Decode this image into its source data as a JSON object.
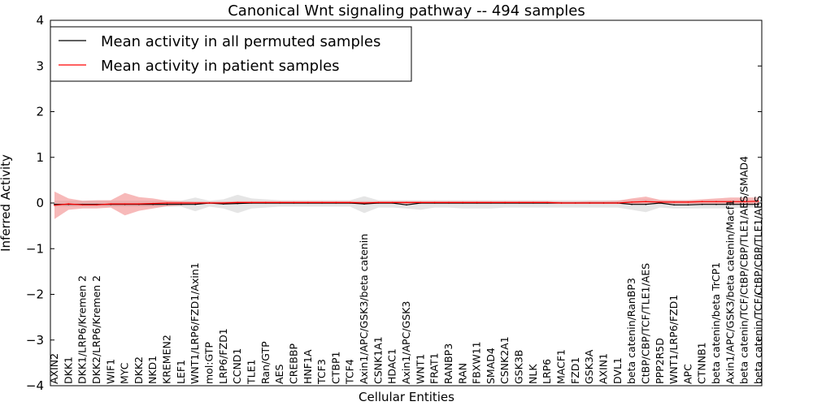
{
  "chart_data": {
    "type": "line",
    "title": "Canonical Wnt signaling pathway -- 494 samples",
    "xlabel": "Cellular Entities",
    "ylabel": "Inferred Activity",
    "ylim": [
      -4,
      4
    ],
    "yticks": [
      {
        "value": 4,
        "label": "4"
      },
      {
        "value": 3,
        "label": "3"
      },
      {
        "value": 2,
        "label": "2"
      },
      {
        "value": 1,
        "label": "1"
      },
      {
        "value": 0,
        "label": "0"
      },
      {
        "value": -1,
        "label": "−1"
      },
      {
        "value": -2,
        "label": "−2"
      },
      {
        "value": -3,
        "label": "−3"
      },
      {
        "value": -4,
        "label": "−4"
      }
    ],
    "grid": false,
    "legend_position": "top-left",
    "categories": [
      "AXIN2",
      "DKK1",
      "DKK1/LRP6/Kremen 2",
      "DKK2/LRP6/Kremen 2",
      "WIF1",
      "MYC",
      "DKK2",
      "NKD1",
      "KREMEN2",
      "LEF1",
      "WNT1/LRP6/FZD1/Axin1",
      "mol:GTP",
      "LRP6/FZD1",
      "CCND1",
      "TLE1",
      "Ran/GTP",
      "AES",
      "CREBBP",
      "HNF1A",
      "TCF3",
      "CTBP1",
      "TCF4",
      "Axin1/APC/GSK3/beta catenin",
      "CSNK1A1",
      "HDAC1",
      "Axin1/APC/GSK3",
      "WNT1",
      "FRAT1",
      "RANBP3",
      "RAN",
      "FBXW11",
      "SMAD4",
      "CSNK2A1",
      "GSK3B",
      "NLK",
      "LRP6",
      "MACF1",
      "FZD1",
      "GSK3A",
      "AXIN1",
      "DVL1",
      "beta catenin/RanBP3",
      "CtBP/CBP/TCF/TLE1/AES",
      "PPP2R5D",
      "WNT1/LRP6/FZD1",
      "APC",
      "CTNNB1",
      "beta catenin/beta TrCP1",
      "Axin1/APC/GSK3/beta catenin/Macf1",
      "beta catenin/TCF/CtBP/CBP/TLE1/AES/SMAD4",
      "beta catenin/TCF/CtBP/CBP/TLE1/AES"
    ],
    "series": [
      {
        "name": "Mean activity in all permuted samples",
        "color": "#000000",
        "band_color": "#bfbfbf",
        "values": [
          -0.03,
          -0.03,
          -0.03,
          -0.03,
          -0.03,
          -0.03,
          -0.03,
          -0.03,
          -0.03,
          -0.03,
          -0.03,
          0.0,
          -0.02,
          -0.01,
          0.0,
          0.0,
          0.0,
          0.0,
          0.0,
          0.0,
          0.0,
          0.0,
          -0.02,
          0.0,
          0.0,
          -0.04,
          0.0,
          0.0,
          0.0,
          0.0,
          0.0,
          0.0,
          0.0,
          0.0,
          0.0,
          0.0,
          0.0,
          0.0,
          0.0,
          0.0,
          0.0,
          -0.03,
          -0.03,
          0.0,
          -0.04,
          -0.04,
          -0.03,
          -0.03,
          -0.03,
          -0.03,
          -0.03
        ],
        "lower": [
          -0.08,
          -0.08,
          -0.08,
          -0.08,
          -0.08,
          -0.08,
          -0.08,
          -0.08,
          -0.08,
          -0.08,
          -0.18,
          -0.08,
          -0.12,
          -0.22,
          -0.12,
          -0.1,
          -0.08,
          -0.08,
          -0.08,
          -0.08,
          -0.08,
          -0.08,
          -0.22,
          -0.1,
          -0.1,
          -0.12,
          -0.15,
          -0.1,
          -0.1,
          -0.12,
          -0.12,
          -0.12,
          -0.1,
          -0.1,
          -0.1,
          -0.1,
          -0.1,
          -0.1,
          -0.1,
          -0.1,
          -0.1,
          -0.15,
          -0.2,
          -0.1,
          -0.12,
          -0.12,
          -0.12,
          -0.12,
          -0.12,
          -0.1,
          -0.1
        ],
        "upper": [
          0.05,
          0.05,
          0.05,
          0.05,
          0.05,
          0.05,
          0.05,
          0.05,
          0.05,
          0.05,
          0.12,
          0.05,
          0.08,
          0.18,
          0.1,
          0.08,
          0.06,
          0.06,
          0.06,
          0.06,
          0.06,
          0.06,
          0.15,
          0.06,
          0.06,
          0.06,
          0.06,
          0.06,
          0.06,
          0.06,
          0.06,
          0.06,
          0.06,
          0.06,
          0.06,
          0.06,
          0.06,
          0.06,
          0.06,
          0.06,
          0.06,
          0.06,
          0.08,
          0.06,
          0.06,
          0.06,
          0.06,
          0.06,
          0.06,
          0.06,
          0.06
        ]
      },
      {
        "name": "Mean activity in patient samples",
        "color": "#ff0000",
        "band_color": "#f08080",
        "values": [
          -0.05,
          -0.02,
          -0.04,
          -0.04,
          -0.02,
          -0.02,
          -0.02,
          -0.01,
          0.0,
          0.0,
          0.0,
          0.0,
          0.0,
          0.01,
          0.01,
          0.01,
          0.01,
          0.01,
          0.01,
          0.01,
          0.01,
          0.01,
          0.0,
          0.01,
          0.01,
          0.01,
          0.01,
          0.01,
          0.01,
          0.01,
          0.01,
          0.01,
          0.01,
          0.01,
          0.01,
          0.01,
          0.0,
          0.0,
          0.0,
          0.0,
          0.0,
          0.02,
          0.03,
          0.02,
          0.02,
          0.02,
          0.03,
          0.03,
          0.03,
          0.03,
          0.04
        ],
        "lower": [
          -0.35,
          -0.15,
          -0.12,
          -0.12,
          -0.1,
          -0.27,
          -0.17,
          -0.12,
          -0.07,
          -0.05,
          -0.02,
          -0.02,
          -0.02,
          -0.02,
          -0.02,
          -0.02,
          -0.02,
          -0.02,
          -0.02,
          -0.02,
          -0.02,
          -0.02,
          -0.02,
          -0.02,
          -0.02,
          -0.02,
          -0.02,
          -0.02,
          -0.02,
          -0.02,
          -0.02,
          -0.02,
          -0.02,
          -0.02,
          -0.02,
          -0.02,
          -0.02,
          -0.02,
          -0.02,
          -0.02,
          -0.02,
          -0.02,
          -0.03,
          -0.02,
          -0.02,
          -0.02,
          -0.02,
          -0.02,
          -0.02,
          -0.02,
          -0.02
        ],
        "upper": [
          0.25,
          0.1,
          0.05,
          0.06,
          0.06,
          0.22,
          0.13,
          0.1,
          0.05,
          0.04,
          0.03,
          0.03,
          0.03,
          0.04,
          0.04,
          0.04,
          0.04,
          0.04,
          0.04,
          0.04,
          0.04,
          0.04,
          0.04,
          0.04,
          0.04,
          0.04,
          0.04,
          0.04,
          0.04,
          0.04,
          0.04,
          0.04,
          0.04,
          0.04,
          0.04,
          0.04,
          0.03,
          0.03,
          0.04,
          0.04,
          0.05,
          0.1,
          0.14,
          0.07,
          0.06,
          0.06,
          0.08,
          0.1,
          0.12,
          0.12,
          0.12
        ]
      }
    ]
  }
}
